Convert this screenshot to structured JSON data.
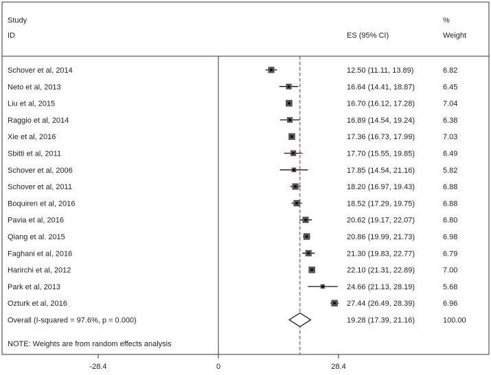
{
  "chart_data": {
    "type": "forest",
    "header": {
      "study_line1": "Study",
      "study_line2": "ID",
      "es_label": "ES (95% CI)",
      "weight_line1": "%",
      "weight_line2": "Weight"
    },
    "x_ticks": [
      "-28.4",
      "0",
      "28.4"
    ],
    "x_tick_values": [
      -28.4,
      0,
      28.4
    ],
    "xlim": [
      -72,
      56
    ],
    "reference_line": 0,
    "overall_line": 19.28,
    "studies": [
      {
        "label": "Schover et al, 2014",
        "es": 12.5,
        "lo": 11.11,
        "hi": 13.89,
        "ci_text": "12.50 (11.11, 13.89)",
        "weight": "6.82"
      },
      {
        "label": "Neto et al, 2013",
        "es": 16.64,
        "lo": 14.41,
        "hi": 18.87,
        "ci_text": "16.64 (14.41, 18.87)",
        "weight": "6.45"
      },
      {
        "label": "Liu et al, 2015",
        "es": 16.7,
        "lo": 16.12,
        "hi": 17.28,
        "ci_text": "16.70 (16.12, 17.28)",
        "weight": "7.04"
      },
      {
        "label": "Raggio et al, 2014",
        "es": 16.89,
        "lo": 14.54,
        "hi": 19.24,
        "ci_text": "16.89 (14.54, 19.24)",
        "weight": "6.38"
      },
      {
        "label": "Xie et al, 2016",
        "es": 17.36,
        "lo": 16.73,
        "hi": 17.99,
        "ci_text": "17.36 (16.73, 17.99)",
        "weight": "7.03"
      },
      {
        "label": "Sbitti et al, 2011",
        "es": 17.7,
        "lo": 15.55,
        "hi": 19.85,
        "ci_text": "17.70 (15.55, 19.85)",
        "weight": "6.49"
      },
      {
        "label": "Schover et al, 2006",
        "es": 17.85,
        "lo": 14.54,
        "hi": 21.16,
        "ci_text": "17.85 (14.54, 21.16)",
        "weight": "5.82"
      },
      {
        "label": "Schover et al, 2011",
        "es": 18.2,
        "lo": 16.97,
        "hi": 19.43,
        "ci_text": "18.20 (16.97, 19.43)",
        "weight": "6.88"
      },
      {
        "label": "Boquiren et al, 2016",
        "es": 18.52,
        "lo": 17.29,
        "hi": 19.75,
        "ci_text": "18.52 (17.29, 19.75)",
        "weight": "6.88"
      },
      {
        "label": "Pavia et al, 2016",
        "es": 20.62,
        "lo": 19.17,
        "hi": 22.07,
        "ci_text": "20.62 (19.17, 22.07)",
        "weight": "6.80"
      },
      {
        "label": "Qiang et al. 2015",
        "es": 20.86,
        "lo": 19.99,
        "hi": 21.73,
        "ci_text": "20.86 (19.99, 21.73)",
        "weight": "6.98"
      },
      {
        "label": "Faghani et al, 2016",
        "es": 21.3,
        "lo": 19.83,
        "hi": 22.77,
        "ci_text": "21.30 (19.83, 22.77)",
        "weight": "6.79"
      },
      {
        "label": "Harirchi et al, 2012",
        "es": 22.1,
        "lo": 21.31,
        "hi": 22.89,
        "ci_text": "22.10 (21.31, 22.89)",
        "weight": "7.00"
      },
      {
        "label": "Park et al, 2013",
        "es": 24.66,
        "lo": 21.13,
        "hi": 28.19,
        "ci_text": "24.66 (21.13, 28.19)",
        "weight": "5.68"
      },
      {
        "label": "Ozturk et al, 2016",
        "es": 27.44,
        "lo": 26.49,
        "hi": 28.39,
        "ci_text": "27.44 (26.49, 28.39)",
        "weight": "6.96"
      }
    ],
    "overall": {
      "label": "Overall  (I-squared = 97.6%, p = 0.000)",
      "es": 19.28,
      "lo": 17.39,
      "hi": 21.16,
      "ci_text": "19.28 (17.39, 21.16)",
      "weight": "100.00"
    },
    "note": "NOTE: Weights are from random effects analysis"
  }
}
